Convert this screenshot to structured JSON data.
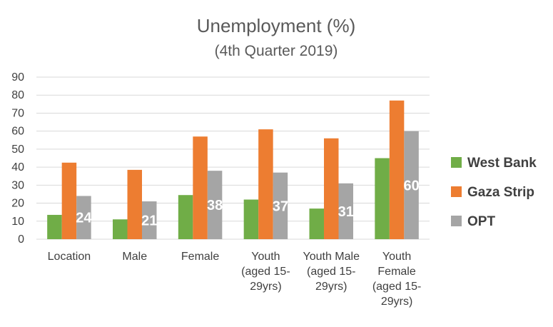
{
  "chart_data": {
    "type": "bar",
    "title": "Unemployment (%)",
    "subtitle": "(4th Quarter 2019)",
    "categories": [
      [
        "Location"
      ],
      [
        "Male"
      ],
      [
        "Female"
      ],
      [
        "Youth",
        "(aged 15-",
        "29yrs)"
      ],
      [
        "Youth Male",
        "(aged 15-",
        "29yrs)"
      ],
      [
        "Youth",
        "Female",
        "(aged 15-",
        "29yrs)"
      ]
    ],
    "series": [
      {
        "name": "West Bank",
        "color": "#70ad47",
        "values": [
          13.5,
          11,
          24.5,
          22,
          17,
          45
        ]
      },
      {
        "name": "Gaza Strip",
        "color": "#ed7d31",
        "values": [
          42.5,
          38.5,
          57,
          61,
          56,
          77
        ]
      },
      {
        "name": "OPT",
        "color": "#a5a5a5",
        "values": [
          24,
          21,
          38,
          37,
          31,
          60
        ],
        "labels": [
          "24",
          "21",
          "38",
          "37",
          "31",
          "60"
        ]
      }
    ],
    "ylim": [
      0,
      90
    ],
    "yticks": [
      0,
      10,
      20,
      30,
      40,
      50,
      60,
      70,
      80,
      90
    ],
    "xlabel": "",
    "ylabel": "",
    "grid": true,
    "legend": "right"
  }
}
